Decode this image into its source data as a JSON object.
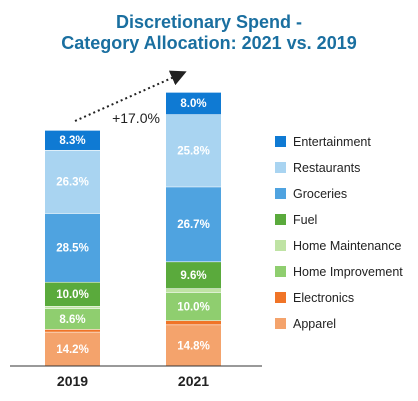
{
  "chart_data": {
    "type": "bar",
    "stacked": true,
    "title": "Discretionary Spend -",
    "subtitle": "Category Allocation: 2021 vs. 2019",
    "categories": [
      "2019",
      "2021"
    ],
    "series": [
      {
        "name": "Apparel",
        "values": [
          14.2,
          14.8
        ],
        "color": "#f4a36c",
        "labels": [
          "14.2%",
          "14.8%"
        ]
      },
      {
        "name": "Electronics",
        "values": [
          1.1,
          1.5
        ],
        "color": "#f07427",
        "labels": [
          "",
          ""
        ]
      },
      {
        "name": "Home Improvement",
        "values": [
          8.6,
          10.0
        ],
        "color": "#8fce6f",
        "labels": [
          "8.6%",
          "10.0%"
        ]
      },
      {
        "name": "Home Maintenance",
        "values": [
          1.0,
          1.4
        ],
        "color": "#bfe3a4",
        "labels": [
          "",
          ""
        ]
      },
      {
        "name": "Fuel",
        "values": [
          10.0,
          9.6
        ],
        "color": "#5aaa3c",
        "labels": [
          "10.0%",
          "9.6%"
        ]
      },
      {
        "name": "Groceries",
        "values": [
          28.5,
          26.7
        ],
        "color": "#4fa3e0",
        "labels": [
          "28.5%",
          "26.7%"
        ]
      },
      {
        "name": "Restaurants",
        "values": [
          26.3,
          25.8
        ],
        "color": "#a9d4f1",
        "labels": [
          "26.3%",
          "25.8%"
        ]
      },
      {
        "name": "Entertainment",
        "values": [
          8.3,
          8.0
        ],
        "color": "#0f7ad3",
        "labels": [
          "8.3%",
          "8.0%"
        ]
      }
    ],
    "legend": {
      "placement": "right",
      "order": [
        "Entertainment",
        "Restaurants",
        "Groceries",
        "Fuel",
        "Home Maintenance",
        "Home Improvement",
        "Electronics",
        "Apparel"
      ]
    },
    "annotation": {
      "text": "+17.0%",
      "from": "2019",
      "to": "2021"
    },
    "relative_totals": [
      1.0,
      1.17
    ],
    "grid": false
  }
}
